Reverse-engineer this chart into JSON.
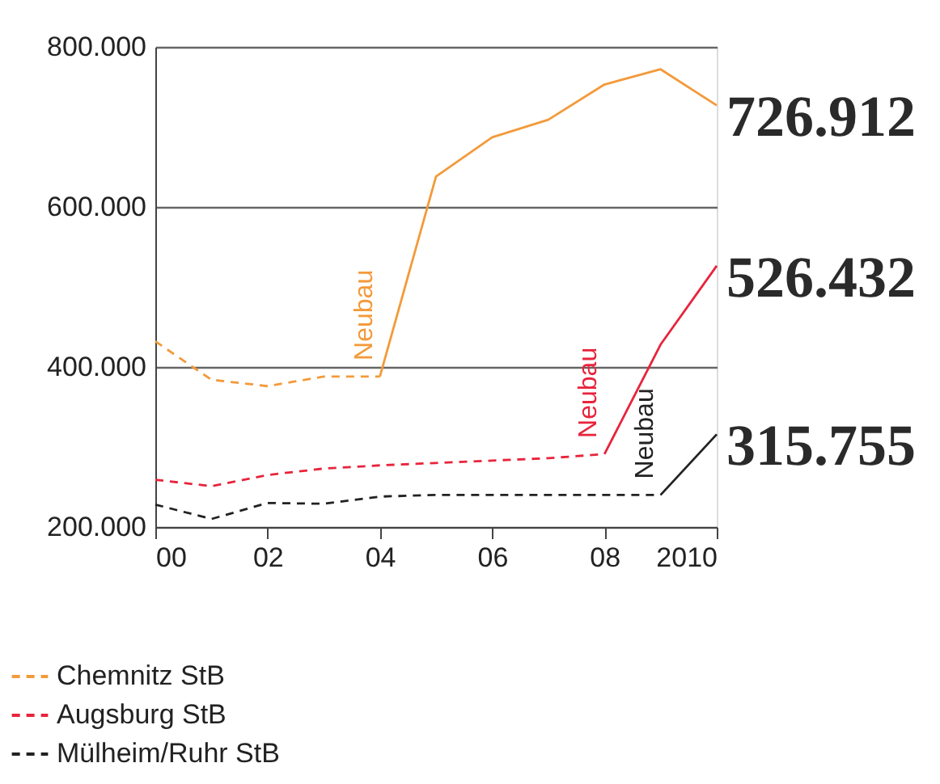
{
  "chart_data": {
    "type": "line",
    "xlim": [
      2000,
      2010
    ],
    "xticks": [
      {
        "value": 2000,
        "label": "00"
      },
      {
        "value": 2002,
        "label": "02"
      },
      {
        "value": 2004,
        "label": "04"
      },
      {
        "value": 2006,
        "label": "06"
      },
      {
        "value": 2008,
        "label": "08"
      },
      2010
    ],
    "ylim": [
      200000,
      800000
    ],
    "yticks": [
      {
        "value": 200000,
        "label": "200.000"
      },
      {
        "value": 400000,
        "label": "400.000"
      },
      {
        "value": 600000,
        "label": "600.000"
      },
      {
        "value": 800000,
        "label": "800.000"
      }
    ],
    "grid": "y",
    "legend": "bottom",
    "marker": "none",
    "series": [
      {
        "name": "Chemnitz StB",
        "color": "#f39a3a",
        "line_style": "dashed",
        "x": [
          2000,
          2001,
          2002,
          2003,
          2004
        ],
        "values": [
          432000,
          384000,
          376000,
          388000,
          388000
        ]
      },
      {
        "name": "Augsburg StB",
        "color": "#e8243c",
        "line_style": "dashed",
        "x": [
          2000,
          2001,
          2002,
          2003,
          2004,
          2005,
          2006,
          2007,
          2008
        ],
        "values": [
          259000,
          251000,
          265000,
          273000,
          277000,
          280000,
          283000,
          286000,
          291000
        ]
      },
      {
        "name": "Mülheim/Ruhr StB",
        "color": "#222222",
        "line_style": "dashed",
        "x": [
          2000,
          2001,
          2002,
          2003,
          2004,
          2005,
          2006,
          2007,
          2008,
          2009
        ],
        "values": [
          228000,
          210000,
          230000,
          229000,
          238000,
          240000,
          240000,
          240000,
          240000,
          240000
        ]
      },
      {
        "color": "#f39a3a",
        "line_style": "solid",
        "x": [
          2004,
          2005,
          2006,
          2007,
          2008,
          2009,
          2010
        ],
        "values": [
          388000,
          638000,
          687000,
          709000,
          753000,
          772000,
          726912
        ],
        "value_labels": [
          null,
          null,
          null,
          null,
          null,
          null,
          "726.912"
        ]
      },
      {
        "color": "#e8243c",
        "line_style": "solid",
        "x": [
          2008,
          2009,
          2010
        ],
        "values": [
          291000,
          428000,
          526432
        ],
        "value_labels": [
          null,
          null,
          "526.432"
        ]
      },
      {
        "color": "#222222",
        "line_style": "solid",
        "x": [
          2009,
          2010
        ],
        "values": [
          240000,
          315755
        ],
        "value_labels": [
          null,
          "315.755"
        ]
      }
    ],
    "annotations": [
      {
        "text": "Neubau",
        "x": 2004,
        "y": 388000
      },
      {
        "text": "Neubau",
        "x": 2008,
        "y": 291000
      },
      {
        "text": "Neubau",
        "x": 2009,
        "y": 240000
      }
    ]
  }
}
